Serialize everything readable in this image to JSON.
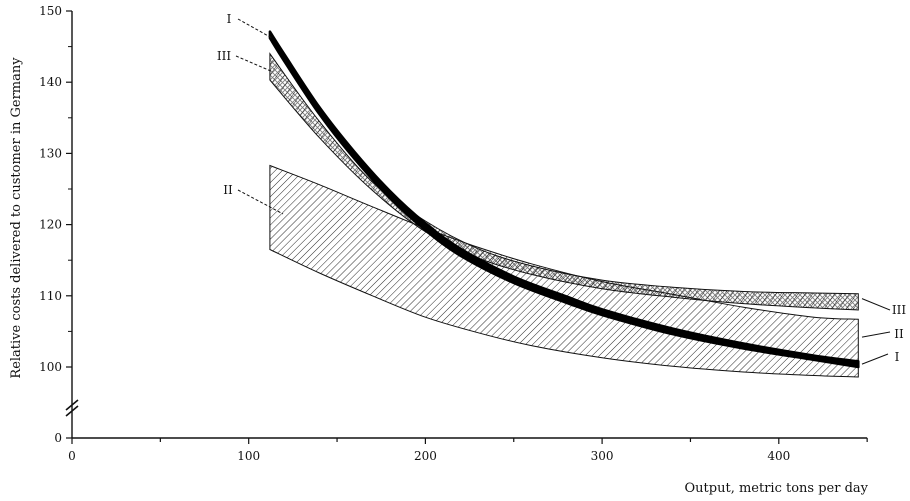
{
  "chart_data": {
    "type": "area",
    "xlabel": "Output, metric tons per day",
    "ylabel": "Relative costs delivered to customer in Germany",
    "xlim": [
      0,
      450
    ],
    "ylim": [
      0,
      150
    ],
    "y_axis_break": "between 0 and 100",
    "x_ticks": [
      "0",
      "100",
      "200",
      "300",
      "400"
    ],
    "x_tick_values": [
      0,
      100,
      200,
      300,
      400
    ],
    "y_ticks": [
      "0",
      "100",
      "110",
      "120",
      "130",
      "140",
      "150"
    ],
    "y_tick_values": [
      0,
      100,
      110,
      120,
      130,
      140,
      150
    ],
    "series": [
      {
        "name": "I",
        "style": "solid heavy band",
        "x": [
          112,
          120,
          140,
          160,
          180,
          200,
          220,
          250,
          280,
          300,
          340,
          380,
          420,
          445
        ],
        "lower": [
          146.2,
          143.0,
          135.5,
          129.2,
          123.7,
          119.2,
          115.6,
          111.8,
          109.0,
          107.3,
          104.6,
          102.6,
          101.0,
          100.0
        ],
        "upper": [
          147.1,
          144.0,
          136.5,
          130.2,
          124.7,
          120.2,
          116.6,
          112.7,
          109.9,
          108.1,
          105.4,
          103.3,
          101.6,
          100.8
        ]
      },
      {
        "name": "II",
        "style": "diagonal hatch band",
        "x": [
          112,
          140,
          170,
          200,
          230,
          260,
          300,
          340,
          380,
          420,
          445
        ],
        "lower": [
          116.5,
          113.2,
          110.0,
          107.0,
          104.8,
          103.0,
          101.3,
          100.1,
          99.3,
          98.8,
          98.6
        ],
        "upper": [
          128.3,
          125.6,
          122.5,
          119.5,
          116.8,
          114.5,
          112.0,
          110.2,
          108.4,
          107.0,
          106.7
        ]
      },
      {
        "name": "III",
        "style": "diagonal hatch band, cross-hatched where overlapping",
        "x": [
          112,
          140,
          170,
          200,
          230,
          260,
          300,
          340,
          380,
          420,
          445
        ],
        "lower": [
          140.3,
          132.2,
          124.8,
          119.0,
          115.3,
          113.0,
          111.0,
          109.8,
          108.9,
          108.3,
          108.0
        ],
        "upper": [
          144.0,
          134.5,
          126.0,
          120.5,
          116.6,
          114.2,
          112.2,
          111.2,
          110.6,
          110.4,
          110.3
        ]
      }
    ]
  }
}
